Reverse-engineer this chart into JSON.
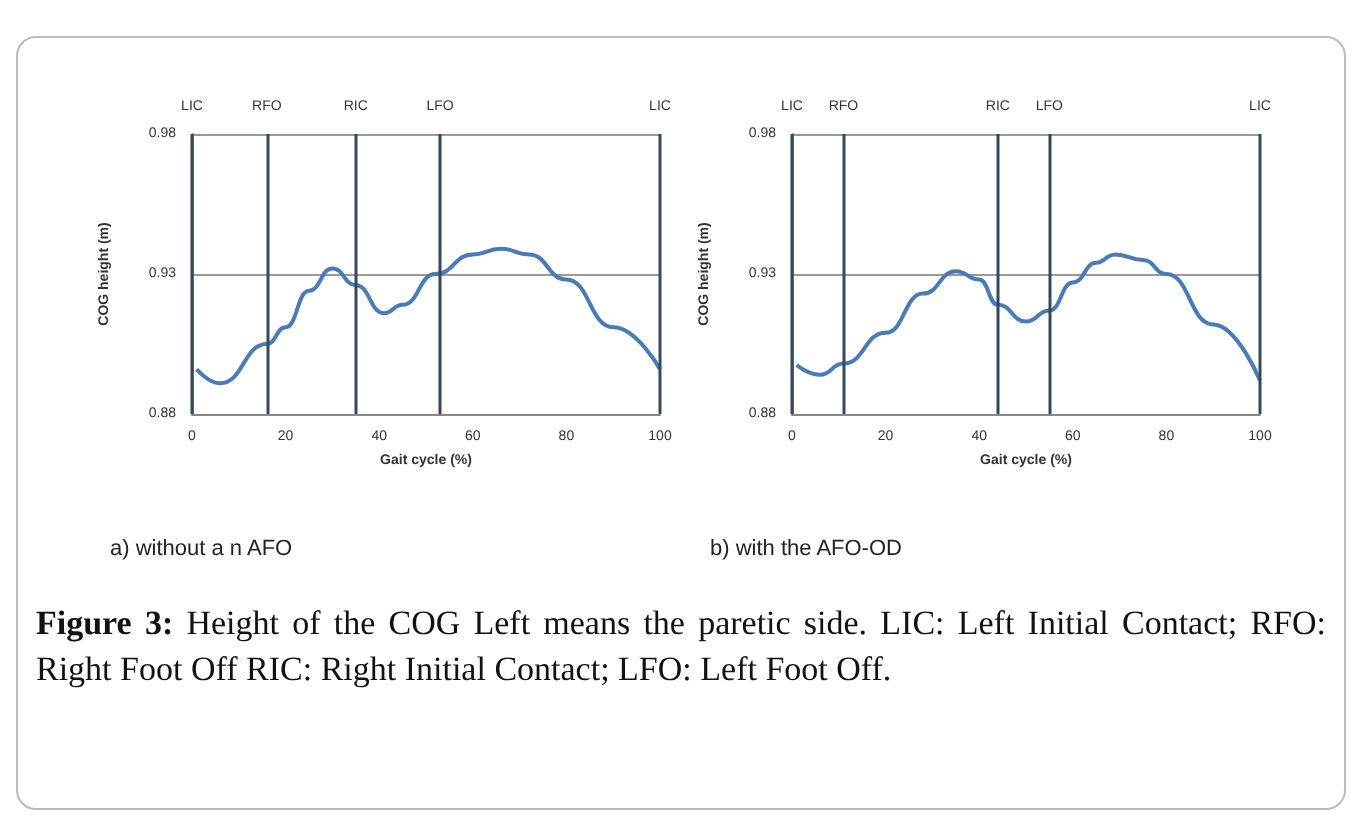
{
  "chart_data": [
    {
      "type": "line",
      "title": "a) without a n AFO",
      "xlabel": "Gait cycle (%)",
      "ylabel": "COG height (m)",
      "series": [
        {
          "color": "#4a7ab8",
          "x": [
            1,
            6,
            16,
            20,
            25,
            30,
            35,
            41,
            45,
            52,
            60,
            66,
            72,
            80,
            90,
            100
          ],
          "values": [
            0.896,
            0.891,
            0.905,
            0.911,
            0.924,
            0.932,
            0.926,
            0.916,
            0.919,
            0.93,
            0.937,
            0.939,
            0.937,
            0.928,
            0.911,
            0.896
          ]
        }
      ],
      "xlim": [
        0,
        100
      ],
      "xticks": [
        0,
        20,
        40,
        60,
        80,
        100
      ],
      "ylim": [
        0.88,
        0.98
      ],
      "yticks": [
        0.88,
        0.93,
        0.98
      ],
      "grid": "y",
      "marker": "none",
      "line_style": "solid",
      "ref_lines": [
        {
          "axis": "x",
          "value": 0,
          "label": "LIC"
        },
        {
          "axis": "x",
          "value": 16,
          "label": "RFO"
        },
        {
          "axis": "x",
          "value": 35,
          "label": "RIC"
        },
        {
          "axis": "x",
          "value": 53,
          "label": "LFO"
        },
        {
          "axis": "x",
          "value": 100,
          "label": "LIC"
        }
      ],
      "annotations": [
        "Figure 3: Height of the COG Left means the paretic side. LIC: Left Initial Contact; RFO: Right Foot Off RIC: Right Initial Contact; LFO: Left Foot Off."
      ]
    },
    {
      "type": "line",
      "title": "b) with the AFO-OD",
      "xlabel": "Gait cycle (%)",
      "ylabel": "COG height (m)",
      "series": [
        {
          "color": "#4a7ab8",
          "x": [
            1,
            6,
            11,
            20,
            28,
            35,
            40,
            44,
            50,
            55,
            60,
            65,
            69,
            75,
            80,
            90,
            100
          ],
          "values": [
            0.8975,
            0.894,
            0.898,
            0.909,
            0.923,
            0.931,
            0.928,
            0.919,
            0.913,
            0.917,
            0.927,
            0.934,
            0.937,
            0.935,
            0.93,
            0.912,
            0.892
          ]
        }
      ],
      "xlim": [
        0,
        100
      ],
      "xticks": [
        0,
        20,
        40,
        60,
        80,
        100
      ],
      "ylim": [
        0.88,
        0.98
      ],
      "yticks": [
        0.88,
        0.93,
        0.98
      ],
      "grid": "y",
      "marker": "none",
      "line_style": "solid",
      "ref_lines": [
        {
          "axis": "x",
          "value": 0,
          "label": "LIC"
        },
        {
          "axis": "x",
          "value": 11,
          "label": "RFO"
        },
        {
          "axis": "x",
          "value": 44,
          "label": "RIC"
        },
        {
          "axis": "x",
          "value": 55,
          "label": "LFO"
        },
        {
          "axis": "x",
          "value": 100,
          "label": "LIC"
        }
      ]
    }
  ]
}
